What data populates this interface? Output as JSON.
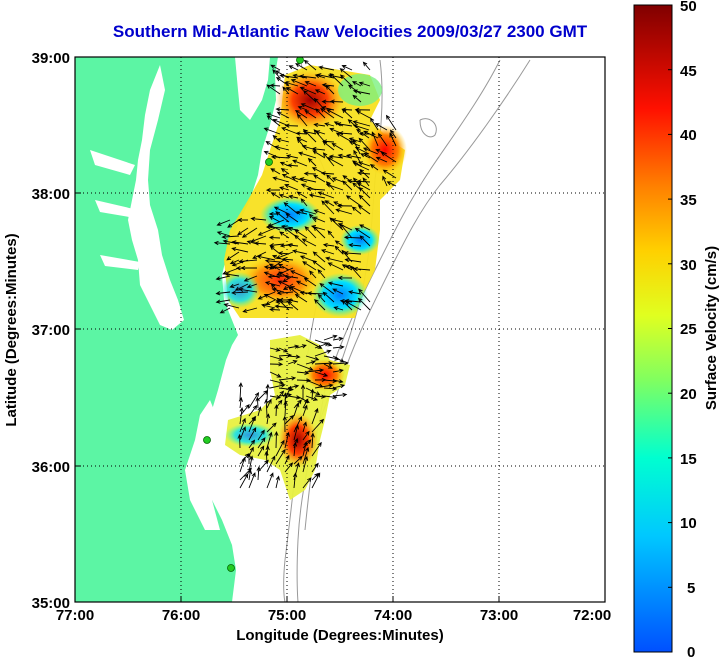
{
  "title": "Southern Mid-Atlantic Raw Velocities 2009/03/27 2300 GMT",
  "x_axis": {
    "label": "Longitude (Degrees:Minutes)",
    "ticks": [
      "77:00",
      "76:00",
      "75:00",
      "74:00",
      "73:00",
      "72:00"
    ]
  },
  "y_axis": {
    "label": "Latitude (Degrees:Minutes)",
    "ticks": [
      "39:00",
      "38:00",
      "37:00",
      "36:00",
      "35:00"
    ]
  },
  "colorbar": {
    "label": "Surface Velocity (cm/s)",
    "ticks": [
      "50",
      "45",
      "40",
      "35",
      "30",
      "25",
      "20",
      "15",
      "10",
      "5",
      "0"
    ],
    "colors": [
      "#7f0000",
      "#ff0000",
      "#ff8000",
      "#ffff00",
      "#80ff80",
      "#00ffff",
      "#0080ff"
    ]
  },
  "colors": {
    "land": "#5cf5a4",
    "title": "#0000cc",
    "station": "#22cc22",
    "vector": "#000000",
    "bathymetry": "#999999"
  }
}
